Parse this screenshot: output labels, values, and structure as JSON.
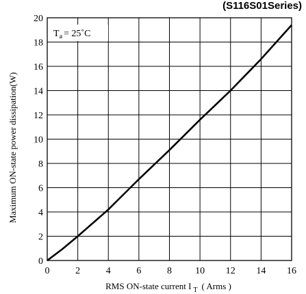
{
  "chart_data": {
    "type": "line",
    "title": "(S116S01Series)",
    "annotation": {
      "base": "T",
      "sub": "a",
      "rest": "= 25˚C"
    },
    "xlabel": {
      "main": "RMS ON-state current I",
      "sub": "T",
      "unit": "( Arms )"
    },
    "ylabel": "Maximum ON-state power dissipation(W)",
    "xlim": [
      0,
      16
    ],
    "ylim": [
      0,
      20
    ],
    "x_ticks": [
      "0",
      "2",
      "4",
      "6",
      "8",
      "10",
      "12",
      "14",
      "16"
    ],
    "y_ticks": [
      "0",
      "2",
      "4",
      "6",
      "8",
      "10",
      "12",
      "14",
      "16",
      "18",
      "20"
    ],
    "grid": true,
    "series": [
      {
        "x": [
          0,
          1,
          2,
          3,
          4,
          5,
          6,
          7,
          8,
          9,
          10,
          11,
          12,
          13,
          14,
          15,
          16
        ],
        "y": [
          0,
          0.95,
          2.0,
          3.1,
          4.2,
          5.45,
          6.7,
          7.9,
          9.1,
          10.35,
          11.6,
          12.8,
          14.0,
          15.3,
          16.6,
          18.0,
          19.4
        ]
      }
    ],
    "line_color": "#000000"
  }
}
